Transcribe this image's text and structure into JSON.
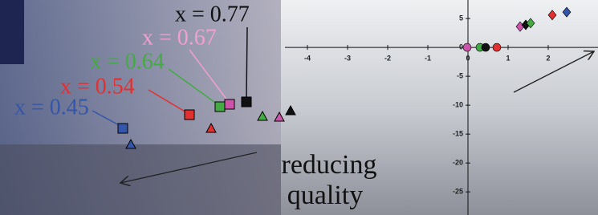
{
  "left_panel": {
    "labels": [
      "x = 0.45",
      "x = 0.54",
      "x = 0.64",
      "x = 0.67",
      "x = 0.77"
    ],
    "annotation": [
      "reducing",
      "quality"
    ]
  },
  "chart_data": {
    "type": "scatter",
    "xlim": [
      -4.56,
      3.24
    ],
    "ylim": [
      -29,
      8.2
    ],
    "xticks": [
      -4,
      -3,
      -2,
      -1,
      0,
      1,
      2
    ],
    "yticks": [
      5,
      0,
      -5,
      -10,
      -15,
      -20,
      -25
    ],
    "series": [
      {
        "marker": "circle",
        "colors": [
          "#cc55aa",
          "#44aa44",
          "#111111",
          "#e03030"
        ],
        "x": [
          -0.02,
          0.3,
          0.44,
          0.72
        ],
        "values": [
          0,
          0,
          0,
          0
        ]
      },
      {
        "marker": "diamond",
        "colors": [
          "#cc55aa",
          "#111111",
          "#44aa44",
          "#e03030",
          "#3355aa"
        ],
        "x": [
          1.3,
          1.44,
          1.56,
          2.1,
          2.46
        ],
        "values": [
          3.6,
          3.9,
          4.2,
          5.6,
          6.1
        ]
      }
    ]
  }
}
